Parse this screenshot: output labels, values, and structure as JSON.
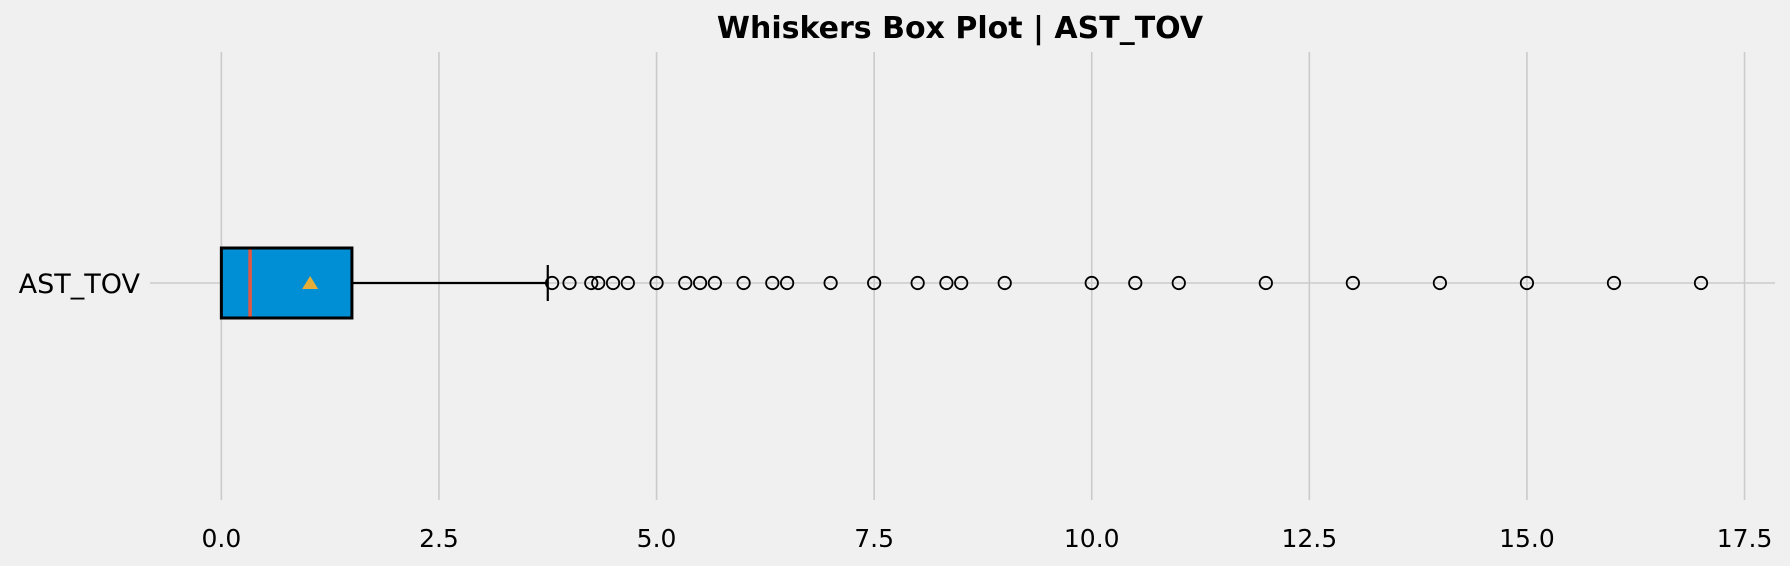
{
  "chart_data": {
    "type": "box",
    "orientation": "horizontal",
    "title": "Whiskers Box Plot | AST_TOV",
    "xlabel": "",
    "ylabel": "",
    "xlim": [
      -0.82,
      17.85
    ],
    "x_ticks": [
      0.0,
      2.5,
      5.0,
      7.5,
      10.0,
      12.5,
      15.0,
      17.5
    ],
    "x_tick_labels": [
      "0.0",
      "2.5",
      "5.0",
      "7.5",
      "10.0",
      "12.5",
      "15.0",
      "17.5"
    ],
    "grid": "vertical",
    "legend": "none",
    "categories": [
      "AST_TOV"
    ],
    "boxes": [
      {
        "name": "AST_TOV",
        "whisker_low": 0.0,
        "q1": 0.0,
        "median": 0.33,
        "mean": 1.02,
        "q3": 1.5,
        "whisker_high": 3.75,
        "outliers": [
          3.8,
          4.0,
          4.25,
          4.33,
          4.5,
          4.67,
          5.0,
          5.33,
          5.5,
          5.67,
          6.0,
          6.33,
          6.5,
          7.0,
          7.5,
          8.0,
          8.33,
          8.5,
          9.0,
          10.0,
          10.5,
          11.0,
          12.0,
          13.0,
          14.0,
          15.0,
          16.0,
          17.0
        ]
      }
    ],
    "colors": {
      "box_fill": "#008fd5",
      "box_edge": "#000000",
      "median": "#e5573f",
      "mean_marker": "#e5ae38",
      "grid": "#cbcbcb",
      "background": "#f0f0f0"
    }
  }
}
